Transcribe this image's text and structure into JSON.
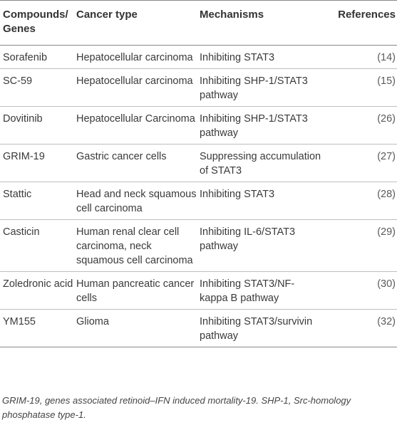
{
  "table": {
    "headers": {
      "compound": "Compounds/ Genes",
      "cancer_type": "Cancer type",
      "mechanisms": "Mechanisms",
      "references": "References"
    },
    "rows": [
      {
        "compound": "Sorafenib",
        "cancer_type": "Hepatocellular carcinoma",
        "mechanism": "Inhibiting STAT3",
        "reference": "(14)"
      },
      {
        "compound": "SC-59",
        "cancer_type": "Hepatocellular carcinoma",
        "mechanism": "Inhibiting SHP-1/STAT3 pathway",
        "reference": "(15)"
      },
      {
        "compound": "Dovitinib",
        "cancer_type": "Hepatocellular Carcinoma",
        "mechanism": "Inhibiting SHP-1/STAT3 pathway",
        "reference": "(26)"
      },
      {
        "compound": "GRIM-19",
        "cancer_type": "Gastric cancer cells",
        "mechanism": "Suppressing accumulation of STAT3",
        "reference": "(27)"
      },
      {
        "compound": "Stattic",
        "cancer_type": "Head and neck squamous cell carcinoma",
        "mechanism": "Inhibiting STAT3",
        "reference": "(28)"
      },
      {
        "compound": "Casticin",
        "cancer_type": "Human renal clear cell carcinoma, neck squamous cell carcinoma",
        "mechanism": "Inhibiting IL-6/STAT3 pathway",
        "reference": "(29)"
      },
      {
        "compound": "Zoledronic acid",
        "cancer_type": "Human pancreatic cancer cells",
        "mechanism": "Inhibiting STAT3/NF-kappa B pathway",
        "reference": "(30)"
      },
      {
        "compound": "YM155",
        "cancer_type": "Glioma",
        "mechanism": "Inhibiting STAT3/survivin pathway",
        "reference": "(32)"
      }
    ]
  },
  "footnote": "GRIM-19, genes associated retinoid–IFN induced mortality-19. SHP-1, Src-homology phosphatase type-1."
}
